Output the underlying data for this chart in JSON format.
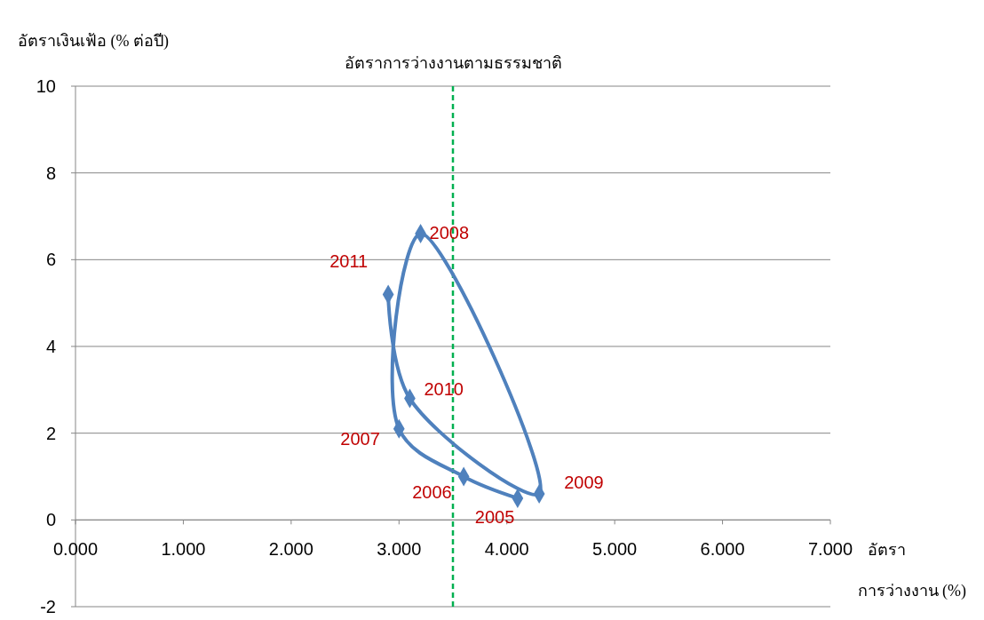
{
  "chart_data": {
    "type": "line",
    "xlabel": "อัตรา การว่างงาน (%)",
    "ylabel": "อัตราเงินเฟ้อ (% ต่อปี)",
    "x": [
      4.1,
      3.6,
      3.0,
      3.2,
      4.3,
      3.1,
      2.9
    ],
    "series": [
      {
        "color": "#4f81bd",
        "values": [
          0.5,
          1.0,
          2.1,
          6.6,
          0.6,
          2.8,
          5.2
        ]
      }
    ],
    "annotations": [
      {
        "text": "2005",
        "x": 4.1,
        "y": 0.5
      },
      {
        "text": "2006",
        "x": 3.6,
        "y": 1.0
      },
      {
        "text": "2007",
        "x": 3.0,
        "y": 2.1
      },
      {
        "text": "2008",
        "x": 3.2,
        "y": 6.6
      },
      {
        "text": "2009",
        "x": 4.3,
        "y": 0.6
      },
      {
        "text": "2010",
        "x": 3.1,
        "y": 2.8
      },
      {
        "text": "2011",
        "x": 2.9,
        "y": 5.2
      }
    ],
    "xlim": [
      0,
      7
    ],
    "xticks": [
      {
        "value": 0,
        "label": "0.000"
      },
      {
        "value": 1,
        "label": "1.000"
      },
      {
        "value": 2,
        "label": "2.000"
      },
      {
        "value": 3,
        "label": "3.000"
      },
      {
        "value": 4,
        "label": "4.000"
      },
      {
        "value": 5,
        "label": "5.000"
      },
      {
        "value": 6,
        "label": "6.000"
      },
      {
        "value": 7,
        "label": "7.000"
      }
    ],
    "ylim": [
      -2,
      10
    ],
    "yticks": [
      -2,
      0,
      2,
      4,
      6,
      8,
      10
    ],
    "grid": "y",
    "marker": "diamond",
    "line_style": "solid",
    "ref_lines": [
      {
        "axis": "x",
        "value": 3.5,
        "label": "อัตราการว่างงานตามธรรมชาติ",
        "color": "#00b050",
        "line_style": "dashed"
      }
    ]
  }
}
